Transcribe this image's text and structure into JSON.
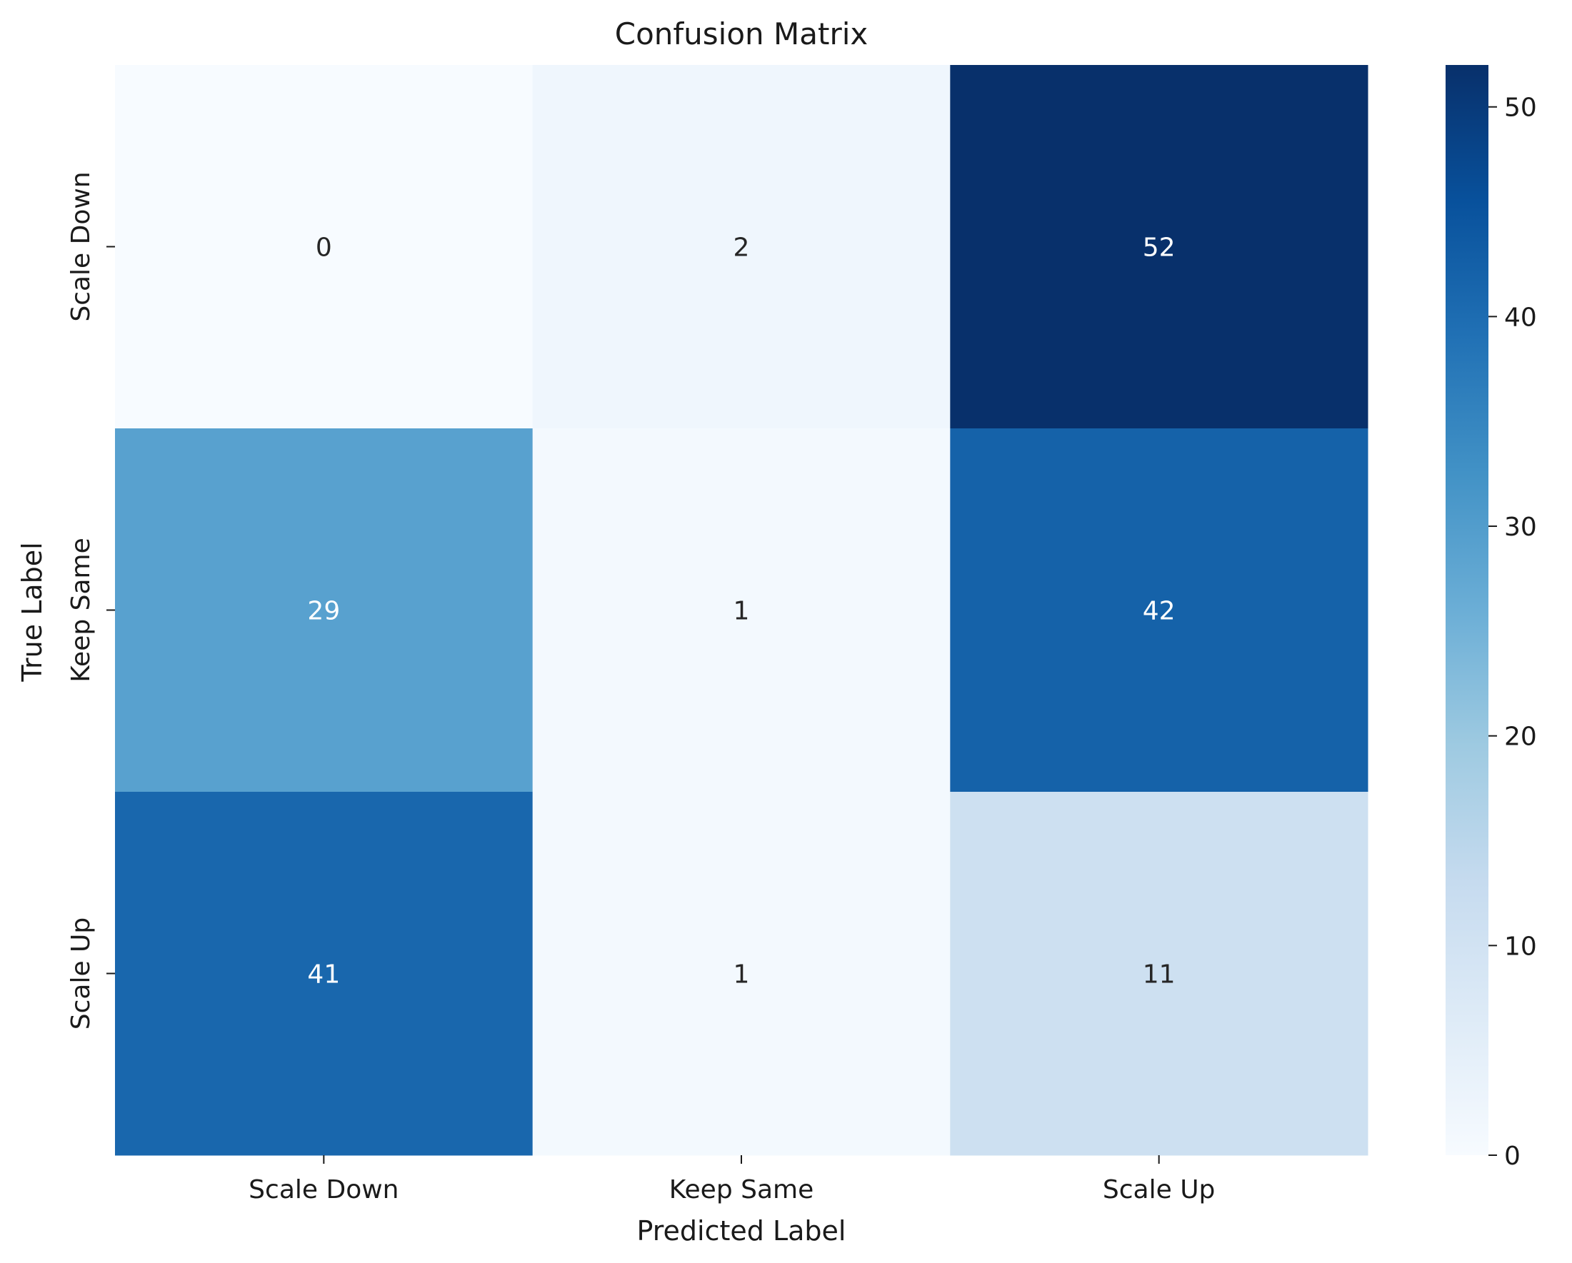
{
  "chart_data": {
    "type": "heatmap",
    "title": "Confusion Matrix",
    "xlabel": "Predicted Label",
    "ylabel": "True Label",
    "x_categories": [
      "Scale Down",
      "Keep Same",
      "Scale Up"
    ],
    "y_categories": [
      "Scale Down",
      "Keep Same",
      "Scale Up"
    ],
    "values": [
      [
        0,
        2,
        52
      ],
      [
        29,
        1,
        42
      ],
      [
        41,
        1,
        11
      ]
    ],
    "colorbar": {
      "range": [
        0,
        52
      ],
      "ticks": [
        "0",
        "10",
        "20",
        "30",
        "40",
        "50"
      ],
      "colormap": "Blues"
    },
    "grid": false
  }
}
